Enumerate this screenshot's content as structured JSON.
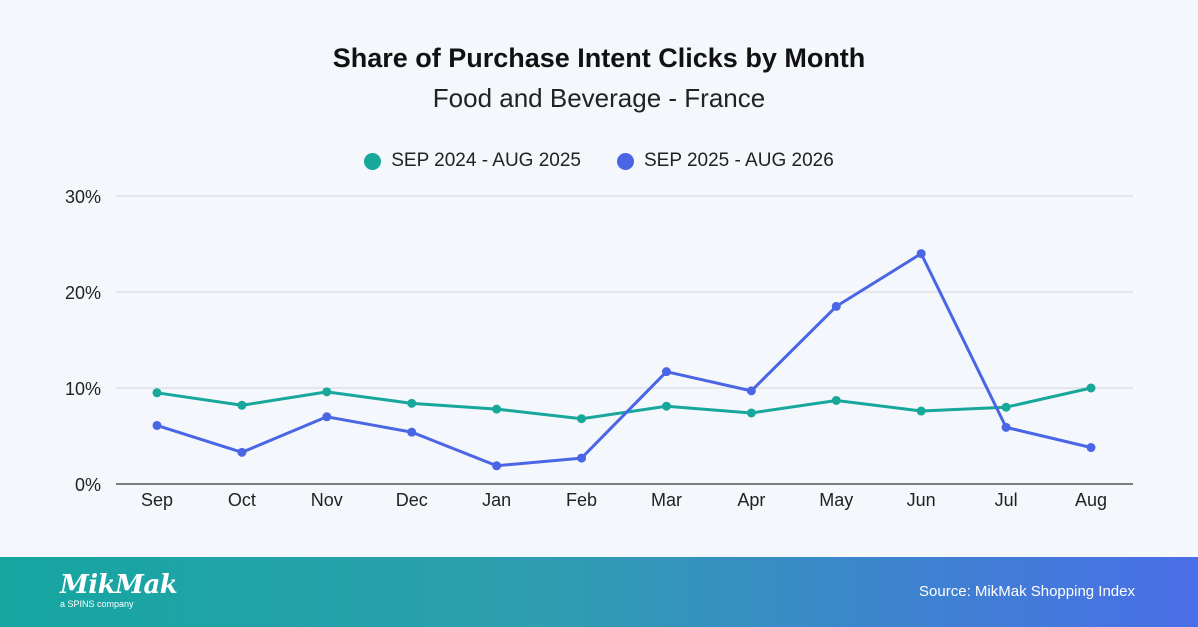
{
  "title": "Share of Purchase Intent Clicks by Month",
  "subtitle": "Food and Beverage - France",
  "legend": [
    {
      "label": "SEP 2024 - AUG 2025",
      "color": "#18a79b"
    },
    {
      "label": "SEP 2025 - AUG 2026",
      "color": "#4a66e5"
    }
  ],
  "footer": {
    "logo_text": "MikMak",
    "logo_tagline": "a SPINS company",
    "source": "Source: MikMak Shopping Index"
  },
  "chart_data": {
    "type": "line",
    "title": "Share of Purchase Intent Clicks by Month",
    "subtitle": "Food and Beverage - France",
    "categories": [
      "Sep",
      "Oct",
      "Nov",
      "Dec",
      "Jan",
      "Feb",
      "Mar",
      "Apr",
      "May",
      "Jun",
      "Jul",
      "Aug"
    ],
    "series": [
      {
        "name": "SEP 2024 - AUG 2025",
        "color": "#18a79b",
        "values": [
          9.5,
          8.2,
          9.6,
          8.4,
          7.8,
          6.8,
          8.1,
          7.4,
          8.7,
          7.6,
          8.0,
          10.0
        ]
      },
      {
        "name": "SEP 2025 - AUG 2026",
        "color": "#4a66e5",
        "values": [
          6.1,
          3.3,
          7.0,
          5.4,
          1.9,
          2.7,
          11.7,
          9.7,
          18.5,
          24.0,
          5.9,
          3.8
        ]
      }
    ],
    "ylim": [
      0,
      30
    ],
    "yticks": [
      0,
      10,
      20,
      30
    ],
    "ytick_labels": [
      "0%",
      "10%",
      "20%",
      "30%"
    ],
    "grid": true,
    "legend_position": "top-center"
  }
}
